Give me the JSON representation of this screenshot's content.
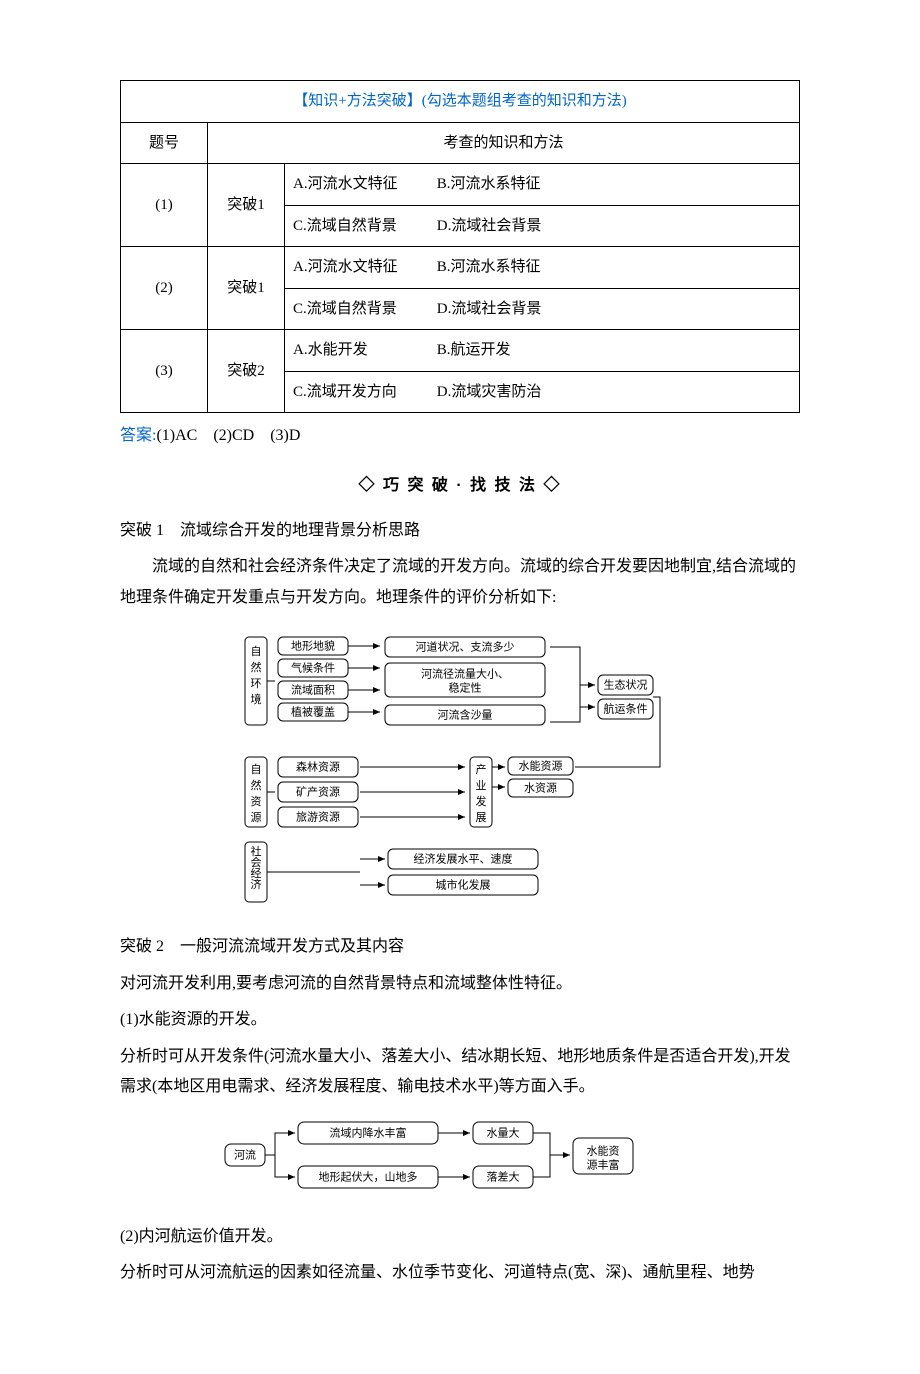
{
  "table": {
    "header_title": "【知识+方法突破】(勾选本题组考查的知识和方法)",
    "col1": "题号",
    "col2": "考查的知识和方法",
    "rows": [
      {
        "num": "(1)",
        "mid": "突破1",
        "opts": [
          "A.河流水文特征",
          "B.河流水系特征",
          "C.流域自然背景",
          "D.流域社会背景"
        ]
      },
      {
        "num": "(2)",
        "mid": "突破1",
        "opts": [
          "A.河流水文特征",
          "B.河流水系特征",
          "C.流域自然背景",
          "D.流域社会背景"
        ]
      },
      {
        "num": "(3)",
        "mid": "突破2",
        "opts": [
          "A.水能开发",
          "B.航运开发",
          "C.流域开发方向",
          "D.流域灾害防治"
        ]
      }
    ]
  },
  "answer_label": "答案:",
  "answer_text": "(1)AC　(2)CD　(3)D",
  "section_title": "◇ 巧 突 破 · 找 技 法 ◇",
  "p1_title": "突破 1　流域综合开发的地理背景分析思路",
  "p1_body": "流域的自然和社会经济条件决定了流域的开发方向。流域的综合开发要因地制宜,结合流域的地理条件确定开发重点与开发方向。地理条件的评价分析如下:",
  "d1": {
    "leftGroups": [
      {
        "label": "自然环境",
        "items": [
          "地形地貌",
          "气候条件",
          "流域面积",
          "植被覆盖"
        ]
      },
      {
        "label": "自然资源",
        "items": [
          "森林资源",
          "矿产资源",
          "旅游资源"
        ]
      },
      {
        "label": "社会经济状况",
        "items": []
      }
    ],
    "midTop": [
      "河道状况、支流多少",
      "河流径流量大小、稳定性",
      "河流含沙量"
    ],
    "rightTop": [
      "生态状况",
      "航运条件"
    ],
    "midRight": [
      "水能资源",
      "水资源"
    ],
    "industry": "产业发展",
    "bottom": [
      "经济发展水平、速度",
      "城市化发展"
    ]
  },
  "p2_title": "突破 2　一般河流流域开发方式及其内容",
  "p2_body": "对河流开发利用,要考虑河流的自然背景特点和流域整体性特征。",
  "sub1_title": "(1)水能资源的开发。",
  "sub1_body": "分析时可从开发条件(河流水量大小、落差大小、结冰期长短、地形地质条件是否适合开发),开发需求(本地区用电需求、经济发展程度、输电技术水平)等方面入手。",
  "d2": {
    "start": "河流",
    "top": "流域内降水丰富",
    "topR": "水量大",
    "bot": "地形起伏大，山地多",
    "botR": "落差大",
    "end": "水能资源丰富"
  },
  "sub2_title": "(2)内河航运价值开发。",
  "sub2_body": "分析时可从河流航运的因素如径流量、水位季节变化、河道特点(宽、深)、通航里程、地势"
}
